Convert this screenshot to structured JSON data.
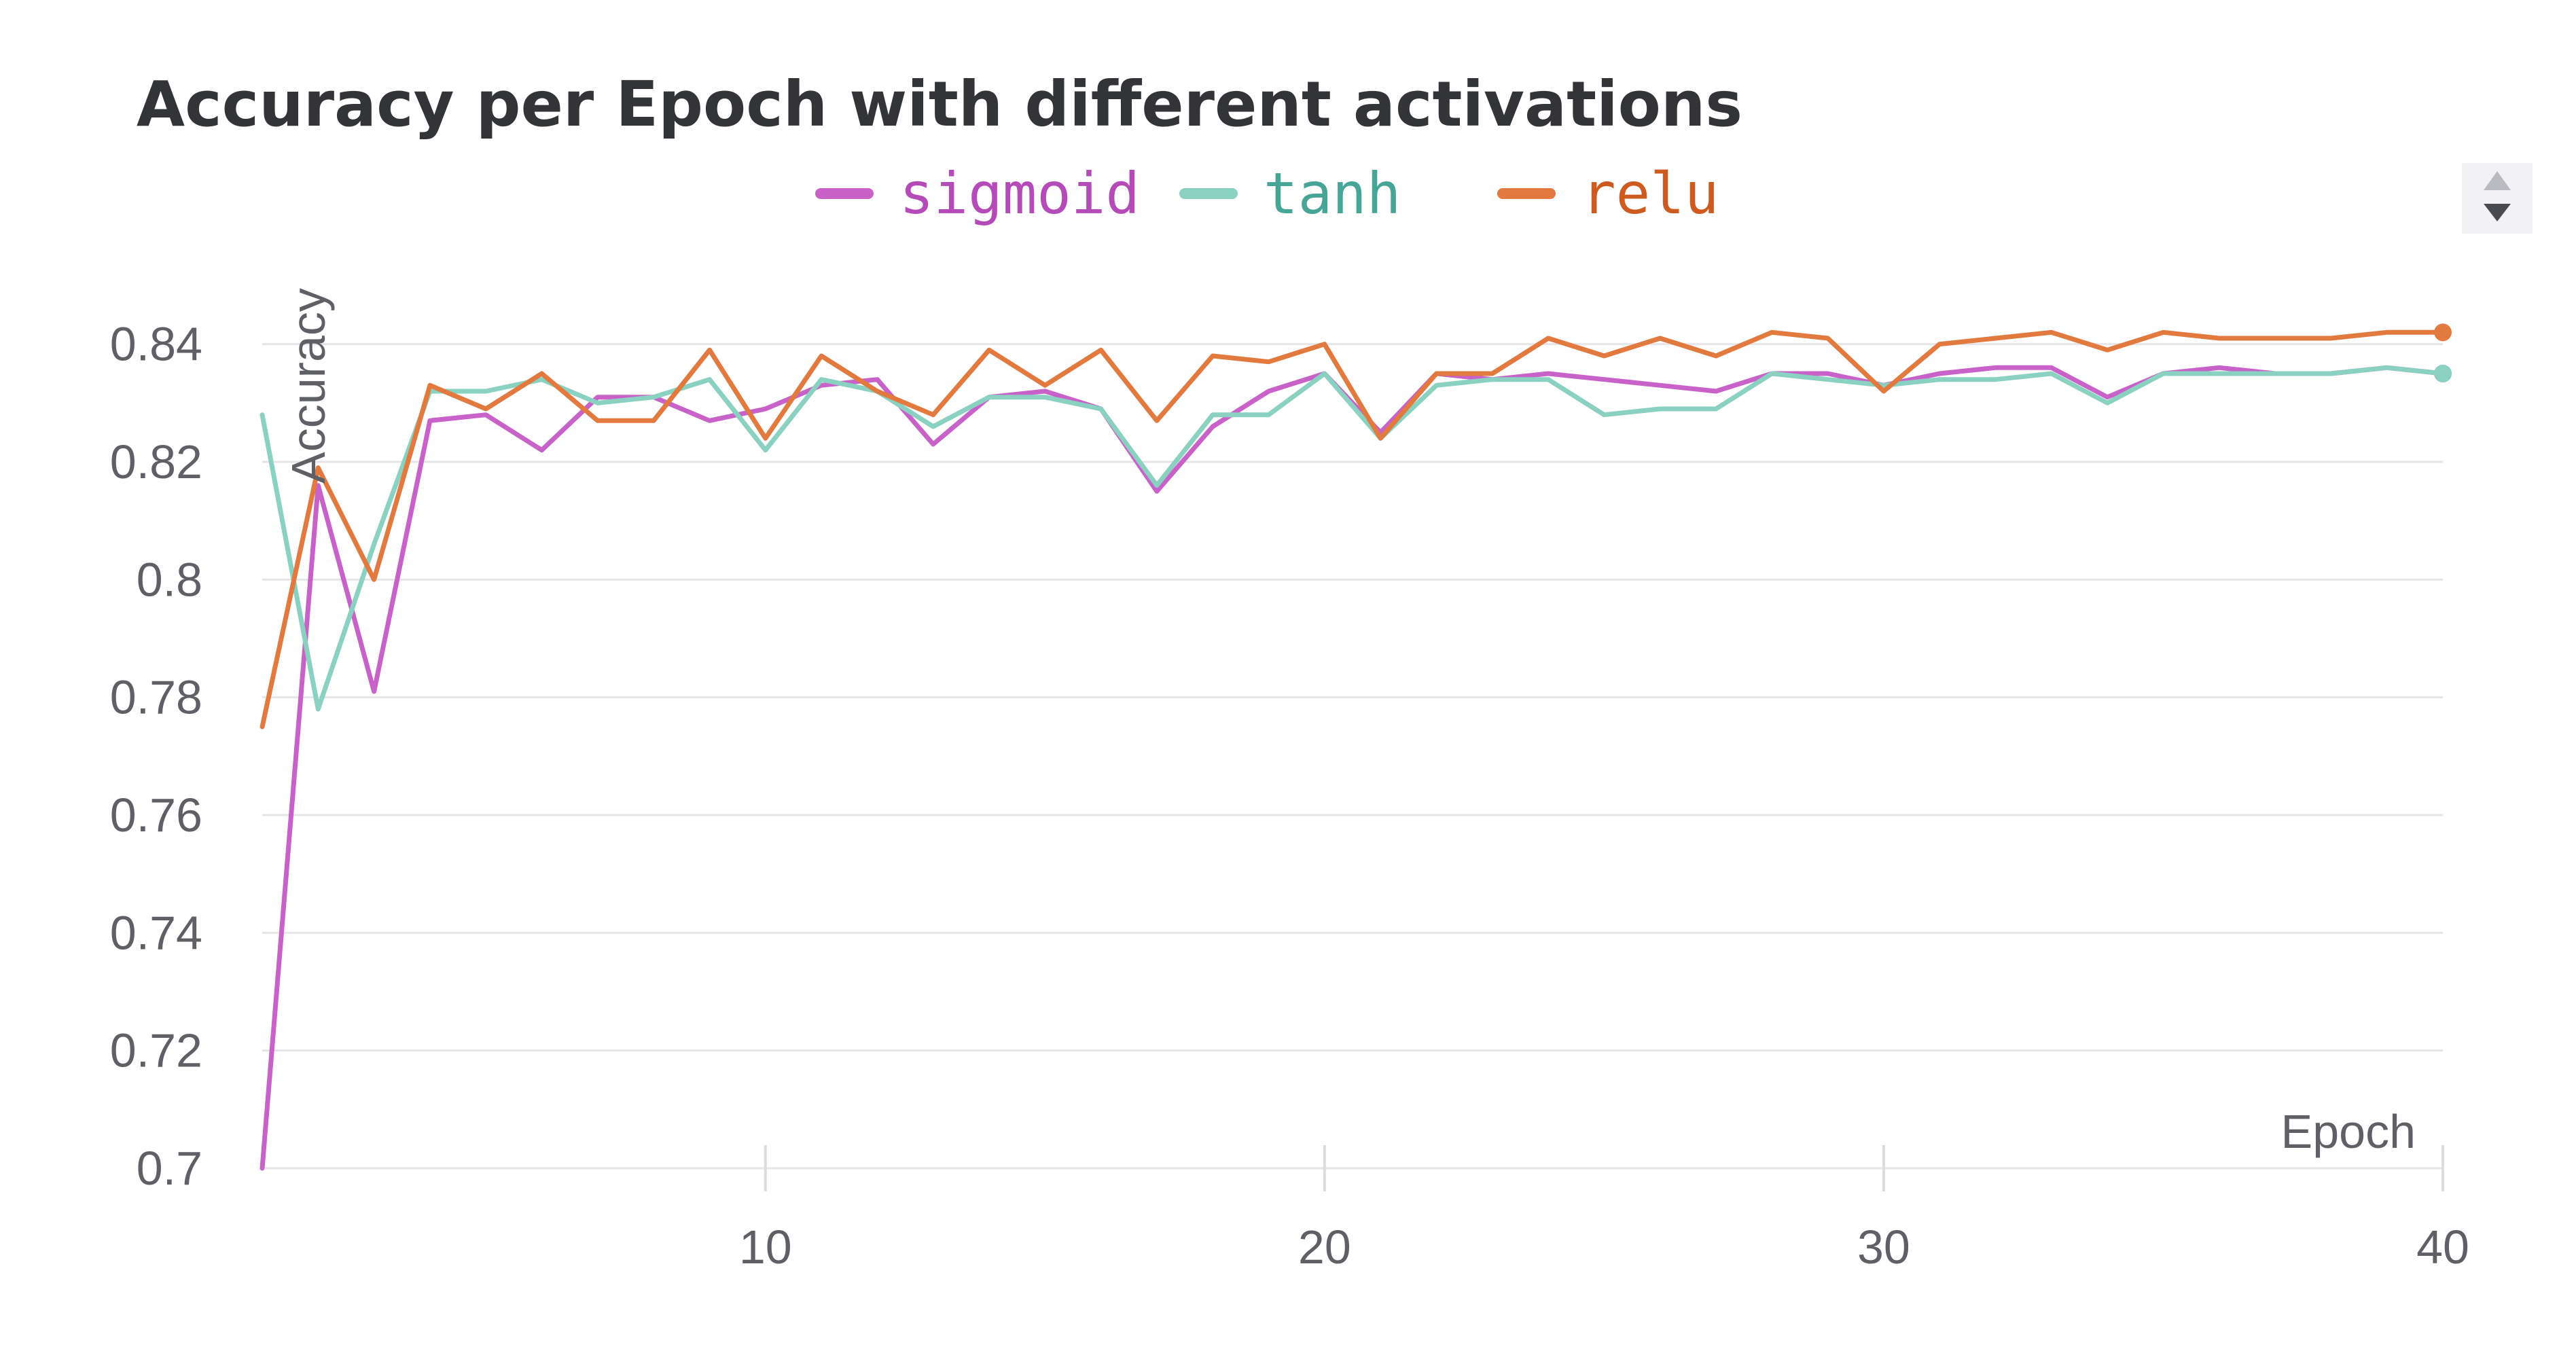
{
  "chart_data": {
    "type": "line",
    "title": "Accuracy per Epoch with different activations",
    "xlabel": "Epoch",
    "ylabel": "Accuracy",
    "xlim": [
      1,
      40
    ],
    "ylim": [
      0.7,
      0.85
    ],
    "x_ticks": [
      10,
      20,
      30,
      40
    ],
    "x_tick_labels": [
      "10",
      "20",
      "30",
      "40"
    ],
    "y_ticks": [
      0.7,
      0.72,
      0.74,
      0.76,
      0.78,
      0.8,
      0.82,
      0.84
    ],
    "y_tick_labels": [
      "0.7",
      "0.72",
      "0.74",
      "0.76",
      "0.78",
      "0.8",
      "0.82",
      "0.84"
    ],
    "grid": true,
    "legend_position": "top-center",
    "x": [
      1,
      2,
      3,
      4,
      5,
      6,
      7,
      8,
      9,
      10,
      11,
      12,
      13,
      14,
      15,
      16,
      17,
      18,
      19,
      20,
      21,
      22,
      23,
      24,
      25,
      26,
      27,
      28,
      29,
      30,
      31,
      32,
      33,
      34,
      35,
      36,
      37,
      38,
      39,
      40
    ],
    "series": [
      {
        "name": "sigmoid",
        "color": "#c862c8",
        "text_color": "#b54bb8",
        "values": [
          0.7,
          0.816,
          0.781,
          0.827,
          0.828,
          0.822,
          0.831,
          0.831,
          0.827,
          0.829,
          0.833,
          0.834,
          0.823,
          0.831,
          0.832,
          0.829,
          0.815,
          0.826,
          0.832,
          0.835,
          0.825,
          0.835,
          0.834,
          0.835,
          0.834,
          0.833,
          0.832,
          0.835,
          0.835,
          0.833,
          0.835,
          0.836,
          0.836,
          0.831,
          0.835,
          0.836,
          0.835,
          0.835,
          0.836,
          0.835
        ]
      },
      {
        "name": "tanh",
        "color": "#8ad1c1",
        "text_color": "#46a596",
        "values": [
          0.828,
          0.778,
          0.806,
          0.832,
          0.832,
          0.834,
          0.83,
          0.831,
          0.834,
          0.822,
          0.834,
          0.832,
          0.826,
          0.831,
          0.831,
          0.829,
          0.816,
          0.828,
          0.828,
          0.835,
          0.824,
          0.833,
          0.834,
          0.834,
          0.828,
          0.829,
          0.829,
          0.835,
          0.834,
          0.833,
          0.834,
          0.834,
          0.835,
          0.83,
          0.835,
          0.835,
          0.835,
          0.835,
          0.836,
          0.835
        ]
      },
      {
        "name": "relu",
        "color": "#e27a3f",
        "text_color": "#cd5b1f",
        "values": [
          0.775,
          0.819,
          0.8,
          0.833,
          0.829,
          0.835,
          0.827,
          0.827,
          0.839,
          0.824,
          0.838,
          0.832,
          0.828,
          0.839,
          0.833,
          0.839,
          0.827,
          0.838,
          0.837,
          0.84,
          0.824,
          0.835,
          0.835,
          0.841,
          0.838,
          0.841,
          0.838,
          0.842,
          0.841,
          0.832,
          0.84,
          0.841,
          0.842,
          0.839,
          0.842,
          0.841,
          0.841,
          0.841,
          0.842,
          0.842
        ]
      }
    ]
  },
  "icons": {
    "scroll_control": "up-down-arrows-icon"
  }
}
